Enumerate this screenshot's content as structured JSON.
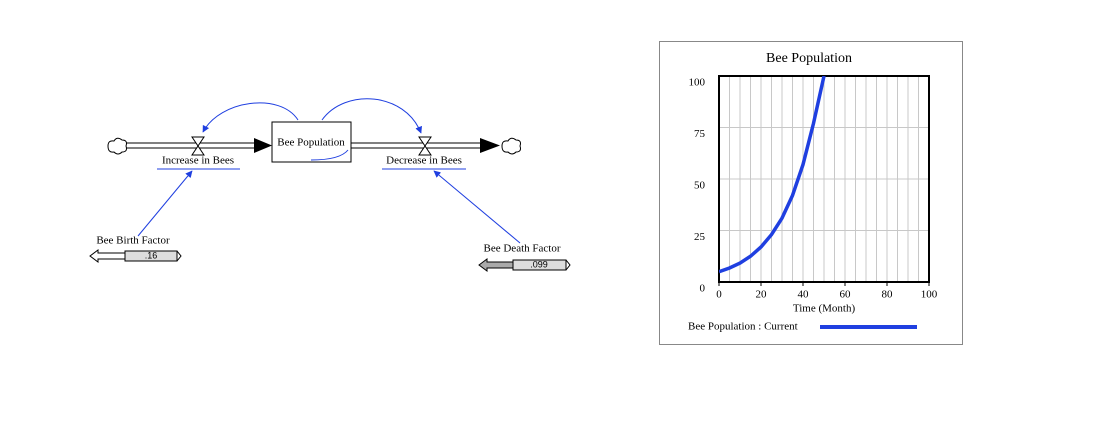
{
  "diagram": {
    "stock": "Bee Population",
    "inflow": "Increase in Bees",
    "outflow": "Decrease in Bees",
    "birth_factor": {
      "label": "Bee Birth Factor",
      "value": ".16"
    },
    "death_factor": {
      "label": "Bee Death Factor",
      "value": ".099"
    }
  },
  "chart_data": {
    "type": "line",
    "title": "Bee Population",
    "x_label": "Time (Month)",
    "x": [
      0,
      5,
      10,
      15,
      20,
      25,
      30,
      35,
      40,
      45,
      50
    ],
    "series": [
      {
        "name": "Bee Population : Current",
        "color": "#1f3fe0",
        "values": [
          5,
          6.8,
          9.2,
          12.5,
          17,
          23,
          31,
          42,
          57,
          77,
          100
        ]
      }
    ],
    "xlim": [
      0,
      100
    ],
    "xticks": [
      0,
      20,
      40,
      60,
      80,
      100
    ],
    "xminorticks": [
      5,
      10,
      15,
      25,
      30,
      35,
      45,
      50,
      55,
      65,
      70,
      75,
      85,
      90,
      95
    ],
    "ylim": [
      0,
      100
    ],
    "yticks": [
      0,
      25,
      50,
      75,
      100
    ],
    "grid": true
  }
}
